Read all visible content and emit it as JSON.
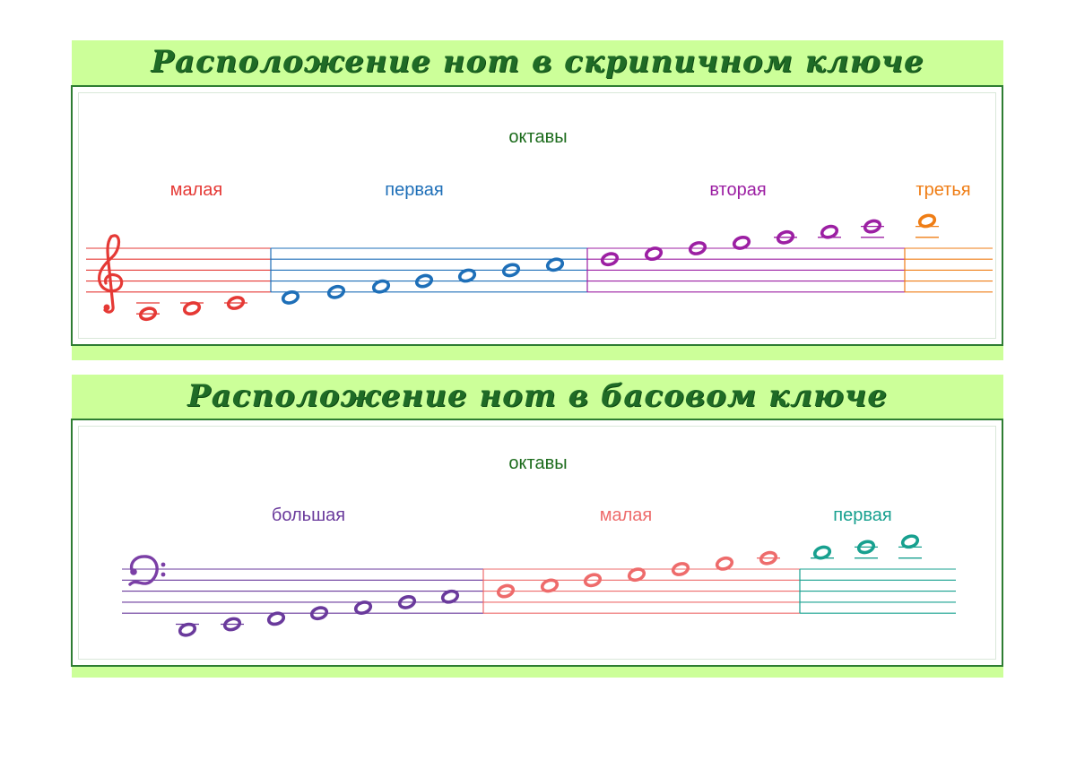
{
  "treble": {
    "title": "Расположение нот в скрипичном ключе",
    "octaves_heading": "октавы",
    "octaves": [
      {
        "label": "малая",
        "color": "#e53935",
        "notes": 3
      },
      {
        "label": "первая",
        "color": "#1e6fb8",
        "notes": 7
      },
      {
        "label": "вторая",
        "color": "#9c1fa3",
        "notes": 7
      },
      {
        "label": "третья",
        "color": "#ef7d15",
        "notes": 1
      }
    ],
    "clef": "treble-clef-icon",
    "clef_color": "#e53935"
  },
  "bass": {
    "title": "Расположение нот в басовом ключе",
    "octaves_heading": "октавы",
    "octaves": [
      {
        "label": "большая",
        "color": "#6a3a9c",
        "notes": 7
      },
      {
        "label": "малая",
        "color": "#ee6b6b",
        "notes": 7
      },
      {
        "label": "первая",
        "color": "#17a08f",
        "notes": 3
      }
    ],
    "clef": "bass-clef-icon",
    "clef_color": "#7b3fa6"
  },
  "colors": {
    "panel_background": "#ccff99",
    "title_color": "#1f6b26",
    "heading_color": "#1b6b1b",
    "border": "#2e7d32"
  }
}
